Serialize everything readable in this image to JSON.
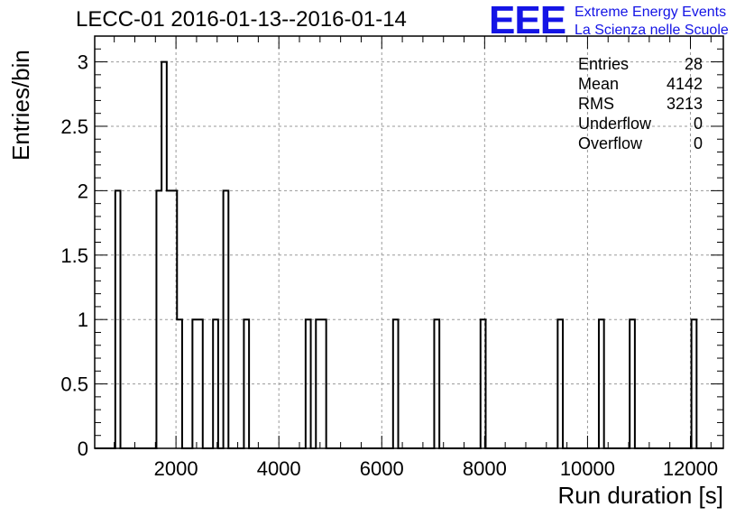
{
  "chart_data": {
    "type": "histogram",
    "title": "LECC-01 2016-01-13--2016-01-14",
    "xlabel": "Run duration [s]",
    "ylabel": "Entries/bin",
    "xlim": [
      420,
      12640
    ],
    "ylim": [
      0,
      3.2
    ],
    "bin_width": 100,
    "x_ticks": [
      2000,
      4000,
      6000,
      8000,
      10000,
      12000
    ],
    "x_tick_labels": [
      "2000",
      "4000",
      "6000",
      "8000",
      "10000",
      "12000"
    ],
    "y_ticks": [
      0,
      0.5,
      1,
      1.5,
      2,
      2.5,
      3
    ],
    "y_tick_labels": [
      "0",
      "0.5",
      "1",
      "1.5",
      "2",
      "2.5",
      "3"
    ],
    "grid": true,
    "bins": [
      {
        "x0": 820,
        "x1": 920,
        "count": 2
      },
      {
        "x0": 1620,
        "x1": 1720,
        "count": 2
      },
      {
        "x0": 1720,
        "x1": 1820,
        "count": 3
      },
      {
        "x0": 1820,
        "x1": 1920,
        "count": 2
      },
      {
        "x0": 1920,
        "x1": 2020,
        "count": 2
      },
      {
        "x0": 2020,
        "x1": 2120,
        "count": 1
      },
      {
        "x0": 2320,
        "x1": 2420,
        "count": 1
      },
      {
        "x0": 2420,
        "x1": 2520,
        "count": 1
      },
      {
        "x0": 2720,
        "x1": 2820,
        "count": 1
      },
      {
        "x0": 2920,
        "x1": 3020,
        "count": 2
      },
      {
        "x0": 3320,
        "x1": 3420,
        "count": 1
      },
      {
        "x0": 4520,
        "x1": 4620,
        "count": 1
      },
      {
        "x0": 4720,
        "x1": 4820,
        "count": 1
      },
      {
        "x0": 4820,
        "x1": 4920,
        "count": 1
      },
      {
        "x0": 6220,
        "x1": 6320,
        "count": 1
      },
      {
        "x0": 7020,
        "x1": 7120,
        "count": 1
      },
      {
        "x0": 7920,
        "x1": 8020,
        "count": 1
      },
      {
        "x0": 9420,
        "x1": 9520,
        "count": 1
      },
      {
        "x0": 10220,
        "x1": 10320,
        "count": 1
      },
      {
        "x0": 10820,
        "x1": 10920,
        "count": 1
      },
      {
        "x0": 12020,
        "x1": 12120,
        "count": 1
      }
    ],
    "stats": [
      {
        "label": "Entries",
        "value": "28"
      },
      {
        "label": "Mean",
        "value": "4142"
      },
      {
        "label": "RMS",
        "value": "3213"
      },
      {
        "label": "Underflow",
        "value": "0"
      },
      {
        "label": "Overflow",
        "value": "0"
      }
    ],
    "line_color": "#000000"
  },
  "logo": {
    "mark": "EEE",
    "line1": "Extreme Energy Events",
    "line2": "La Scienza nelle Scuole",
    "color": "#1414e6"
  }
}
